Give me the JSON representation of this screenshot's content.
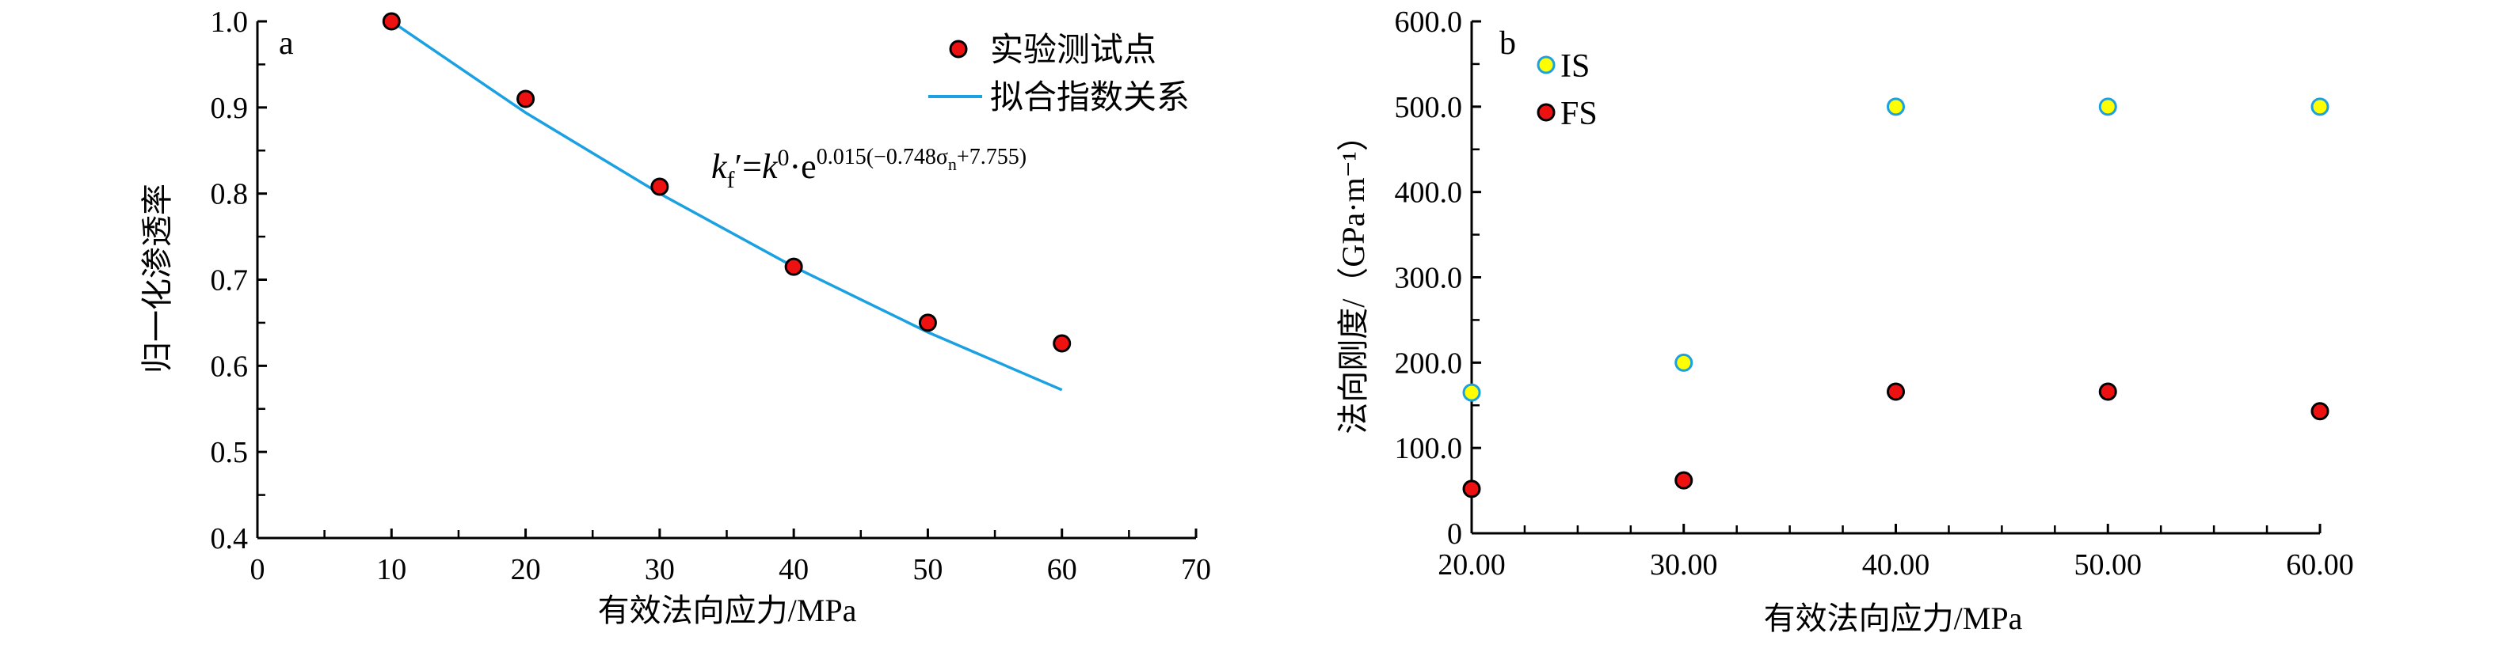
{
  "chart_data": [
    {
      "type": "scatter",
      "panel_label": "a",
      "xlabel": "有效法向应力/MPa",
      "ylabel": "归一化渗透率",
      "xlim": [
        0,
        70
      ],
      "ylim": [
        0.4,
        1.0
      ],
      "xticks": [
        "0",
        "10",
        "20",
        "30",
        "40",
        "50",
        "60",
        "70"
      ],
      "yticks": [
        "0.4",
        "0.5",
        "0.6",
        "0.7",
        "0.8",
        "0.9",
        "1.0"
      ],
      "series": [
        {
          "name": "实验测试点",
          "kind": "points",
          "color": "#ee1111",
          "x": [
            10,
            20,
            30,
            40,
            50,
            60
          ],
          "y": [
            1.0,
            0.91,
            0.808,
            0.715,
            0.65,
            0.626
          ]
        },
        {
          "name": "拟合指数关系",
          "kind": "line",
          "color": "#1ba1e2",
          "x": [
            10,
            20,
            30,
            40,
            50,
            60
          ],
          "y": [
            1.0,
            0.894,
            0.8,
            0.715,
            0.639,
            0.572
          ]
        }
      ],
      "annotation": {
        "k": "k",
        "sub": "f",
        "prime": "′",
        "eq": "=",
        "k0": "k",
        "sup0": "0",
        "dot": "·",
        "e": "e",
        "exponent_a": "0.015(−0.748σ",
        "exponent_n": "n",
        "exponent_b": "+7.755)"
      },
      "legend": "top-right"
    },
    {
      "type": "scatter",
      "panel_label": "b",
      "xlabel": "有效法向应力/MPa",
      "ylabel": "法向刚度/（GPa·m⁻¹）",
      "xlim": [
        20,
        60
      ],
      "ylim": [
        0,
        600
      ],
      "xticks": [
        "20.00",
        "30.00",
        "40.00",
        "50.00",
        "60.00"
      ],
      "yticks": [
        "0",
        "100.0",
        "200.0",
        "300.0",
        "400.0",
        "500.0",
        "600.0"
      ],
      "series": [
        {
          "name": "IS",
          "fill": "#ffff00",
          "stroke": "#1ba1e2",
          "x": [
            20,
            30,
            40,
            50,
            60
          ],
          "y": [
            165,
            200,
            500,
            500,
            500
          ]
        },
        {
          "name": "FS",
          "fill": "#ee1111",
          "stroke": "#000000",
          "x": [
            20,
            30,
            40,
            50,
            60
          ],
          "y": [
            52,
            62,
            166,
            166,
            143
          ]
        }
      ],
      "legend": "top-left"
    }
  ]
}
